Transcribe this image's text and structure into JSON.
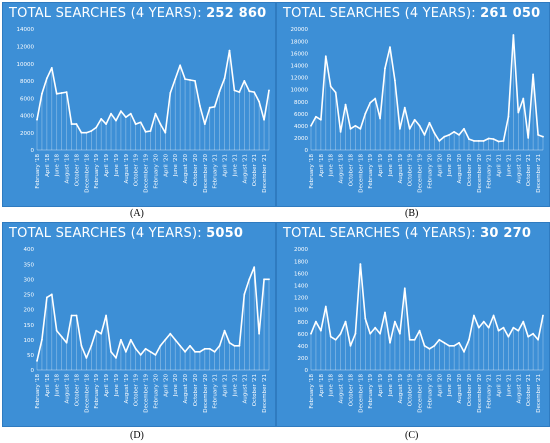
{
  "chart_data": [
    {
      "id": "A",
      "type": "area",
      "title": "TOTAL SEARCHES (4 YEARS):",
      "total": "252 860",
      "caption": "(A)",
      "ylim": [
        0,
        14000
      ],
      "yticks": [
        0,
        2000,
        4000,
        6000,
        8000,
        10000,
        12000,
        14000
      ],
      "tick_labels": [
        "0",
        "2000",
        "4000",
        "6000",
        "8000",
        "10000",
        "12000",
        "14000"
      ],
      "grid": false,
      "x": [
        "February '18",
        "",
        "April '18",
        "",
        "June '18",
        "",
        "August '18",
        "",
        "October '18",
        "",
        "December '18",
        "",
        "February '19",
        "",
        "April '19",
        "",
        "June '19",
        "",
        "August '19",
        "",
        "October '19",
        "",
        "December '19",
        "",
        "February '20",
        "",
        "April '20",
        "",
        "June '20",
        "",
        "August '20",
        "",
        "October '20",
        "",
        "December '20",
        "",
        "February '21",
        "",
        "April '21",
        "",
        "June '21",
        "",
        "August '21",
        "",
        "October '21",
        "",
        "December '21",
        ""
      ],
      "x_label_step": 2,
      "values": [
        3500,
        6500,
        8300,
        9500,
        6500,
        6600,
        6700,
        3000,
        3000,
        2000,
        2000,
        2200,
        2600,
        3600,
        3000,
        4200,
        3400,
        4500,
        3800,
        4200,
        3000,
        3200,
        2100,
        2200,
        4200,
        3000,
        2000,
        6600,
        8200,
        9800,
        8200,
        8100,
        8000,
        5100,
        3000,
        4900,
        5000,
        6800,
        8300,
        11500,
        6900,
        6700,
        8000,
        6800,
        6700,
        5600,
        3500,
        6900
      ]
    },
    {
      "id": "B",
      "type": "area",
      "title": "TOTAL SEARCHES (4 YEARS):",
      "total": "261 050",
      "caption": "(B)",
      "ylim": [
        0,
        20000
      ],
      "yticks": [
        0,
        2000,
        4000,
        6000,
        8000,
        10000,
        12000,
        14000,
        16000,
        18000,
        20000
      ],
      "tick_labels": [
        "0",
        "2000",
        "4000",
        "6000",
        "8000",
        "10000",
        "12000",
        "14000",
        "16000",
        "18000",
        "20000"
      ],
      "grid": false,
      "x": [
        "February '18",
        "",
        "April '18",
        "",
        "June '18",
        "",
        "August '18",
        "",
        "October '18",
        "",
        "December '18",
        "",
        "February '19",
        "",
        "April '19",
        "",
        "June '19",
        "",
        "August '19",
        "",
        "October '19",
        "",
        "December '19",
        "",
        "February '20",
        "",
        "April '20",
        "",
        "June '20",
        "",
        "August '20",
        "",
        "October '20",
        "",
        "December '20",
        "",
        "February '21",
        "",
        "April '21",
        "",
        "June '21",
        "",
        "August '21",
        "",
        "October '21",
        "",
        "December '21",
        ""
      ],
      "x_label_step": 2,
      "values": [
        4000,
        5500,
        5000,
        15500,
        10500,
        9500,
        3000,
        7500,
        3500,
        4000,
        3500,
        6000,
        7800,
        8500,
        5200,
        13500,
        17000,
        11500,
        3500,
        7000,
        3500,
        5000,
        4000,
        2500,
        4500,
        2800,
        1500,
        2200,
        2500,
        3000,
        2500,
        3500,
        1800,
        1500,
        1500,
        1500,
        1900,
        1800,
        1400,
        1500,
        5500,
        19000,
        6200,
        8500,
        2000,
        12500,
        2500,
        2200
      ]
    },
    {
      "id": "D",
      "type": "area",
      "title": "TOTAL SEARCHES (4 YEARS):",
      "total": "5050",
      "caption": "(D)",
      "ylim": [
        0,
        400
      ],
      "yticks": [
        0,
        50,
        100,
        150,
        200,
        250,
        300,
        350,
        400
      ],
      "tick_labels": [
        "0",
        "50",
        "100",
        "150",
        "200",
        "250",
        "300",
        "350",
        "400"
      ],
      "grid": false,
      "x": [
        "February '18",
        "",
        "April '18",
        "",
        "June '18",
        "",
        "August '18",
        "",
        "October '18",
        "",
        "December '18",
        "",
        "February '19",
        "",
        "April '19",
        "",
        "June '19",
        "",
        "August '19",
        "",
        "October '19",
        "",
        "December '19",
        "",
        "February '20",
        "",
        "April '20",
        "",
        "June '20",
        "",
        "August '20",
        "",
        "October '20",
        "",
        "December '20",
        "",
        "February '21",
        "",
        "April '21",
        "",
        "June '21",
        "",
        "August '21",
        "",
        "October '21",
        "",
        "December '21",
        ""
      ],
      "x_label_step": 2,
      "values": [
        30,
        100,
        240,
        250,
        130,
        110,
        90,
        180,
        180,
        80,
        40,
        80,
        130,
        120,
        180,
        60,
        40,
        100,
        60,
        100,
        70,
        50,
        70,
        60,
        50,
        80,
        100,
        120,
        100,
        80,
        60,
        80,
        60,
        60,
        70,
        70,
        60,
        80,
        130,
        90,
        80,
        80,
        250,
        300,
        340,
        120,
        300,
        300
      ]
    },
    {
      "id": "C",
      "type": "area",
      "title": "TOTAL SEARCHES (4 YEARS):",
      "total": "30 270",
      "caption": "(C)",
      "ylim": [
        0,
        2000
      ],
      "yticks": [
        0,
        200,
        400,
        600,
        800,
        1000,
        1200,
        1400,
        1600,
        1800,
        2000
      ],
      "tick_labels": [
        "0",
        "200",
        "400",
        "600",
        "800",
        "1000",
        "1200",
        "1400",
        "1600",
        "1800",
        "2000"
      ],
      "grid": false,
      "x": [
        "February '18",
        "",
        "April '18",
        "",
        "June '18",
        "",
        "August '18",
        "",
        "October '18",
        "",
        "December '18",
        "",
        "February '19",
        "",
        "April '19",
        "",
        "June '19",
        "",
        "August '19",
        "",
        "October '19",
        "",
        "December '19",
        "",
        "February '20",
        "",
        "April '20",
        "",
        "June '20",
        "",
        "August '20",
        "",
        "October '20",
        "",
        "December '20",
        "",
        "February '21",
        "",
        "April '21",
        "",
        "June '21",
        "",
        "August '21",
        "",
        "October '21",
        "",
        "December '21",
        ""
      ],
      "x_label_step": 2,
      "values": [
        600,
        800,
        650,
        1050,
        550,
        500,
        600,
        800,
        400,
        600,
        1750,
        850,
        600,
        700,
        600,
        950,
        450,
        800,
        600,
        1350,
        500,
        500,
        650,
        400,
        350,
        400,
        500,
        450,
        400,
        400,
        450,
        300,
        500,
        900,
        700,
        800,
        700,
        900,
        650,
        700,
        550,
        700,
        650,
        800,
        550,
        600,
        500,
        900
      ]
    }
  ]
}
